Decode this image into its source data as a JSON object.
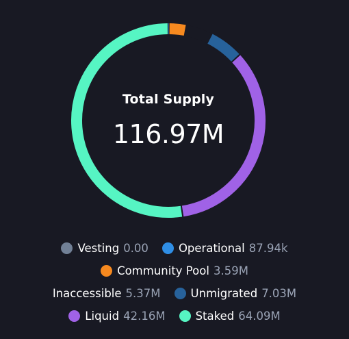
{
  "center": {
    "title": "Total Supply",
    "value": "116.97M"
  },
  "chart_data": {
    "type": "pie",
    "title": "Total Supply",
    "total": 116.97,
    "unit": "M",
    "slices": [
      {
        "label": "Vesting",
        "display": "0.00",
        "value": 0.0,
        "color": "#718096"
      },
      {
        "label": "Operational",
        "display": "87.94k",
        "value": 0.08794,
        "color": "#2f8ee5"
      },
      {
        "label": "Community Pool",
        "display": "3.59M",
        "value": 3.59,
        "color": "#f6891f"
      },
      {
        "label": "Inaccessible",
        "display": "5.37M",
        "value": 5.37,
        "color": "#181923"
      },
      {
        "label": "Unmigrated",
        "display": "7.03M",
        "value": 7.03,
        "color": "#27629b"
      },
      {
        "label": "Liquid",
        "display": "42.16M",
        "value": 42.16,
        "color": "#a062e6"
      },
      {
        "label": "Staked",
        "display": "64.09M",
        "value": 64.09,
        "color": "#56f5c3"
      }
    ]
  },
  "legend": {
    "rows": [
      [
        {
          "label": "Vesting",
          "value": "0.00",
          "color": "#718096",
          "dot": true
        },
        {
          "label": "Operational",
          "value": "87.94k",
          "color": "#2f8ee5",
          "dot": true
        }
      ],
      [
        {
          "label": "Community Pool",
          "value": "3.59M",
          "color": "#f6891f",
          "dot": true
        }
      ],
      [
        {
          "label": "Inaccessible",
          "value": "5.37M",
          "color": "",
          "dot": false
        },
        {
          "label": "Unmigrated",
          "value": "7.03M",
          "color": "#27629b",
          "dot": true
        }
      ],
      [
        {
          "label": "Liquid",
          "value": "42.16M",
          "color": "#a062e6",
          "dot": true
        },
        {
          "label": "Staked",
          "value": "64.09M",
          "color": "#56f5c3",
          "dot": true
        }
      ]
    ]
  }
}
